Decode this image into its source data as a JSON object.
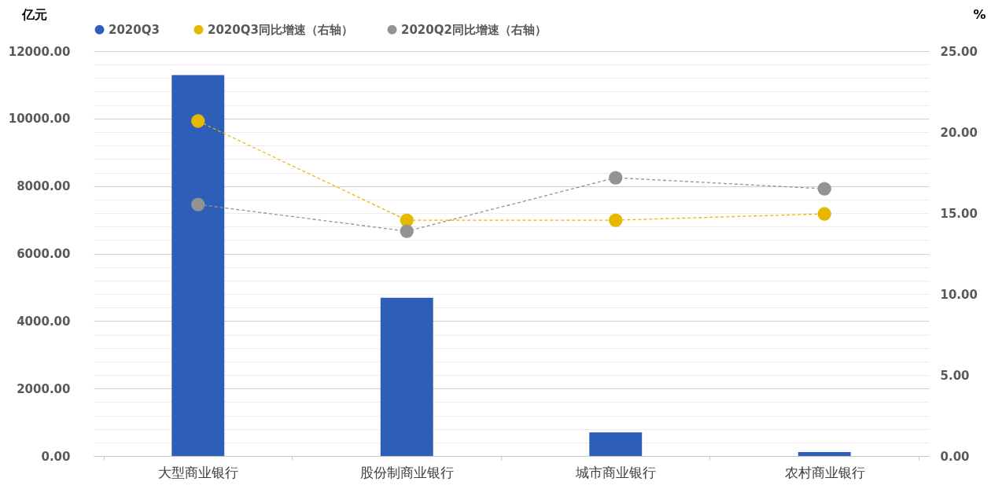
{
  "chart_data": {
    "type": "bar",
    "categories": [
      "大型商业银行",
      "股份制商业银行",
      "城市商业银行",
      "农村商业银行"
    ],
    "ylabel": "亿元",
    "y2label": "%",
    "series": [
      {
        "name": "2020Q3",
        "color": "#2e5fb8",
        "values": [
          11290,
          4690,
          700,
          115
        ]
      },
      {
        "name": "2020Q3同比增速（右轴）",
        "type": "line",
        "axis": "y2",
        "color": "#e6b800",
        "values": [
          20.68,
          14.56,
          14.56,
          14.95
        ]
      },
      {
        "name": "2020Q2同比增速（右轴）",
        "type": "line",
        "axis": "y2",
        "color": "#939393",
        "values": [
          15.53,
          13.88,
          17.18,
          16.5
        ]
      }
    ],
    "ylim": [
      0,
      12000
    ],
    "yticks": [
      {
        "value": 0,
        "label": "0.00"
      },
      {
        "value": 400,
        "label": null
      },
      {
        "value": 800,
        "label": null
      },
      {
        "value": 1200,
        "label": null
      },
      {
        "value": 1600,
        "label": null
      },
      {
        "value": 2000,
        "label": "2000.00"
      },
      {
        "value": 2400,
        "label": null
      },
      {
        "value": 2800,
        "label": null
      },
      {
        "value": 3200,
        "label": null
      },
      {
        "value": 3600,
        "label": null
      },
      {
        "value": 4000,
        "label": "4000.00"
      },
      {
        "value": 4400,
        "label": null
      },
      {
        "value": 4800,
        "label": null
      },
      {
        "value": 5200,
        "label": null
      },
      {
        "value": 5600,
        "label": null
      },
      {
        "value": 6000,
        "label": "6000.00"
      },
      {
        "value": 6400,
        "label": null
      },
      {
        "value": 6800,
        "label": null
      },
      {
        "value": 7200,
        "label": null
      },
      {
        "value": 7600,
        "label": null
      },
      {
        "value": 8000,
        "label": "8000.00"
      },
      {
        "value": 8400,
        "label": null
      },
      {
        "value": 8800,
        "label": null
      },
      {
        "value": 9200,
        "label": null
      },
      {
        "value": 9600,
        "label": null
      },
      {
        "value": 10000,
        "label": "10000.00"
      },
      {
        "value": 10400,
        "label": null
      },
      {
        "value": 10800,
        "label": null
      },
      {
        "value": 11200,
        "label": null
      },
      {
        "value": 11600,
        "label": null
      },
      {
        "value": 12000,
        "label": "12000.00"
      }
    ],
    "y2lim": [
      0,
      25
    ],
    "y2ticks": [
      {
        "value": 0,
        "label": "0.00"
      },
      {
        "value": 5,
        "label": "5.00"
      },
      {
        "value": 10,
        "label": "10.00"
      },
      {
        "value": 15,
        "label": "15.00"
      },
      {
        "value": 20,
        "label": "20.00"
      },
      {
        "value": 25,
        "label": "25.00"
      }
    ],
    "grid": "y",
    "legend": "top",
    "marker": "circle",
    "line_style": "dashed"
  }
}
